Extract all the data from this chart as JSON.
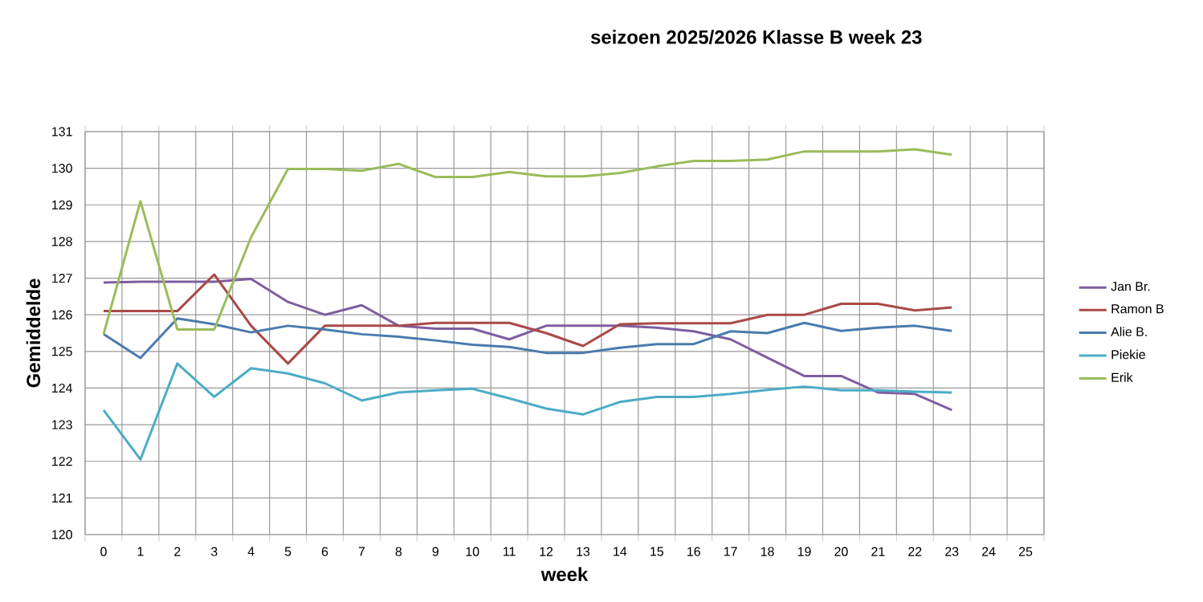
{
  "chart_data": {
    "type": "line",
    "title": "seizoen 2025/2026  Klasse B week 23",
    "xlabel": "week",
    "ylabel": "Gemiddelde",
    "categories": [
      "0",
      "1",
      "2",
      "3",
      "4",
      "5",
      "6",
      "7",
      "8",
      "9",
      "10",
      "11",
      "12",
      "13",
      "14",
      "15",
      "16",
      "17",
      "18",
      "19",
      "20",
      "21",
      "22",
      "23",
      "24",
      "25"
    ],
    "ylim": [
      120,
      131
    ],
    "yticks": [
      120,
      121,
      122,
      123,
      124,
      125,
      126,
      127,
      128,
      129,
      130,
      131
    ],
    "grid": true,
    "legend": "right",
    "series": [
      {
        "name": "Jan Br.",
        "color": "#7d5fa0",
        "values": [
          126.88,
          126.9,
          126.9,
          126.9,
          126.98,
          126.35,
          126.0,
          126.26,
          125.7,
          125.62,
          125.62,
          125.33,
          125.7,
          125.7,
          125.7,
          125.65,
          125.55,
          125.33,
          124.83,
          124.33,
          124.33,
          123.88,
          123.84,
          123.4,
          null,
          null
        ]
      },
      {
        "name": "Ramon B",
        "color": "#a94a48",
        "values": [
          126.1,
          126.1,
          126.1,
          127.1,
          125.7,
          124.67,
          125.7,
          125.7,
          125.7,
          125.78,
          125.78,
          125.78,
          125.5,
          125.15,
          125.74,
          125.77,
          125.77,
          125.77,
          126.0,
          126.0,
          126.3,
          126.3,
          126.12,
          126.2,
          null,
          null
        ]
      },
      {
        "name": "Alie B.",
        "color": "#4a7bad",
        "values": [
          125.47,
          124.82,
          125.9,
          125.74,
          125.52,
          125.7,
          125.6,
          125.47,
          125.4,
          125.3,
          125.18,
          125.12,
          124.96,
          124.96,
          125.1,
          125.2,
          125.2,
          125.55,
          125.5,
          125.78,
          125.56,
          125.65,
          125.7,
          125.56,
          null,
          null
        ]
      },
      {
        "name": "Piekie",
        "color": "#4bacc6",
        "values": [
          123.4,
          122.05,
          124.67,
          123.76,
          124.54,
          124.4,
          124.13,
          123.66,
          123.88,
          123.94,
          123.98,
          123.72,
          123.44,
          123.28,
          123.62,
          123.76,
          123.76,
          123.84,
          123.95,
          124.04,
          123.94,
          123.94,
          123.9,
          123.88,
          null,
          null
        ]
      },
      {
        "name": "Erik",
        "color": "#9bbb59",
        "values": [
          125.47,
          129.1,
          125.6,
          125.6,
          128.12,
          129.98,
          129.98,
          129.93,
          130.12,
          129.76,
          129.76,
          129.9,
          129.78,
          129.78,
          129.87,
          130.05,
          130.2,
          130.2,
          130.24,
          130.46,
          130.46,
          130.46,
          130.52,
          130.37,
          null,
          null
        ]
      }
    ]
  }
}
